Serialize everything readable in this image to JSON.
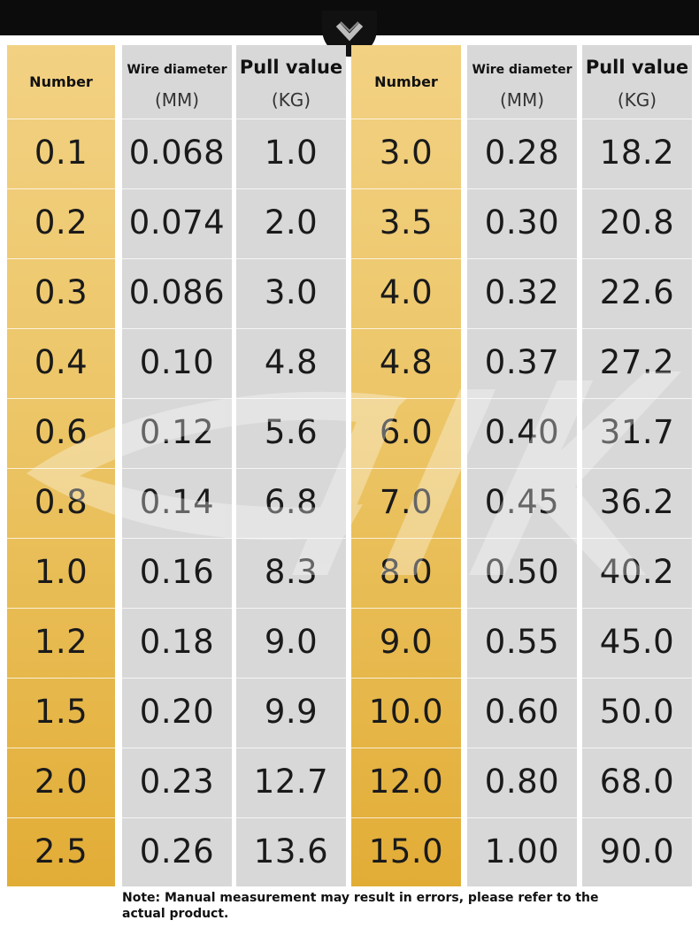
{
  "headers": {
    "number": "Number",
    "diameter": "Wire diameter",
    "diameter_unit": "(MM)",
    "pull": "Pull value",
    "pull_unit": "(KG)"
  },
  "left_table": [
    {
      "number": "0.1",
      "diameter": "0.068",
      "pull": "1.0"
    },
    {
      "number": "0.2",
      "diameter": "0.074",
      "pull": "2.0"
    },
    {
      "number": "0.3",
      "diameter": "0.086",
      "pull": "3.0"
    },
    {
      "number": "0.4",
      "diameter": "0.10",
      "pull": "4.8"
    },
    {
      "number": "0.6",
      "diameter": "0.12",
      "pull": "5.6"
    },
    {
      "number": "0.8",
      "diameter": "0.14",
      "pull": "6.8"
    },
    {
      "number": "1.0",
      "diameter": "0.16",
      "pull": "8.3"
    },
    {
      "number": "1.2",
      "diameter": "0.18",
      "pull": "9.0"
    },
    {
      "number": "1.5",
      "diameter": "0.20",
      "pull": "9.9"
    },
    {
      "number": "2.0",
      "diameter": "0.23",
      "pull": "12.7"
    },
    {
      "number": "2.5",
      "diameter": "0.26",
      "pull": "13.6"
    }
  ],
  "right_table": [
    {
      "number": "3.0",
      "diameter": "0.28",
      "pull": "18.2"
    },
    {
      "number": "3.5",
      "diameter": "0.30",
      "pull": "20.8"
    },
    {
      "number": "4.0",
      "diameter": "0.32",
      "pull": "22.6"
    },
    {
      "number": "4.8",
      "diameter": "0.37",
      "pull": "27.2"
    },
    {
      "number": "6.0",
      "diameter": "0.40",
      "pull": "31.7"
    },
    {
      "number": "7.0",
      "diameter": "0.45",
      "pull": "36.2"
    },
    {
      "number": "8.0",
      "diameter": "0.50",
      "pull": "40.2"
    },
    {
      "number": "9.0",
      "diameter": "0.55",
      "pull": "45.0"
    },
    {
      "number": "10.0",
      "diameter": "0.60",
      "pull": "50.0"
    },
    {
      "number": "12.0",
      "diameter": "0.80",
      "pull": "68.0"
    },
    {
      "number": "15.0",
      "diameter": "1.00",
      "pull": "90.0"
    }
  ],
  "note": "Note: Manual measurement may result in errors, please refer to the actual product.",
  "icons": {
    "top_notch": "chevron-down-icon",
    "watermark": "brand-watermark"
  },
  "colors": {
    "gold_top": "#f2d183",
    "gold_bottom": "#e2ad36",
    "grey": "#d8d8d8",
    "bar": "#0c0c0c"
  }
}
